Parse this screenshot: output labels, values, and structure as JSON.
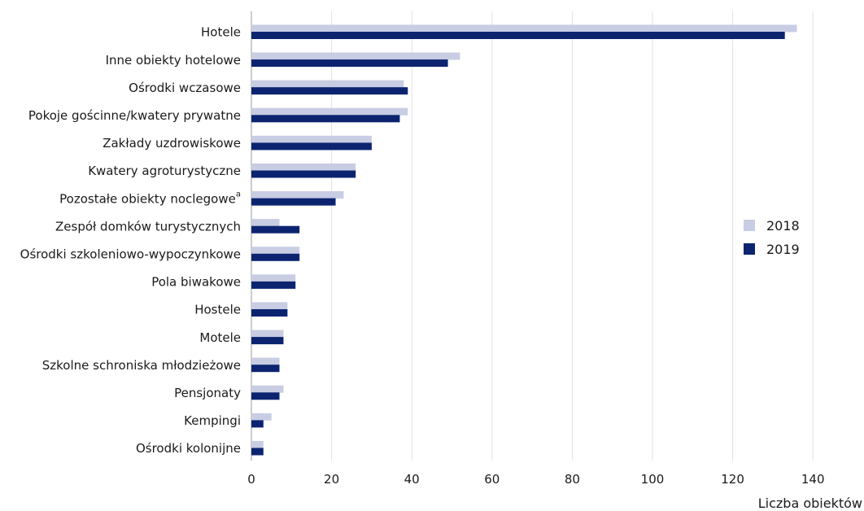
{
  "chart_data": {
    "type": "bar",
    "orientation": "horizontal",
    "categories": [
      "Hotele",
      "Inne obiekty hotelowe",
      "Ośrodki wczasowe",
      "Pokoje gościnne/kwatery prywatne",
      "Zakłady uzdrowiskowe",
      "Kwatery agroturystyczne",
      "Pozostałe obiekty noclegowe",
      "Zespół domków turystycznych",
      "Ośrodki szkoleniowo-wypoczynkowe",
      "Pola biwakowe",
      "Hostele",
      "Motele",
      "Szkolne schroniska młodzieżowe",
      "Pensjonaty",
      "Kempingi",
      "Ośrodki kolonijne"
    ],
    "footnote_marker": "a",
    "series": [
      {
        "name": "2018",
        "color": "#c8cde3",
        "values": [
          136,
          52,
          38,
          39,
          30,
          26,
          23,
          7,
          12,
          11,
          9,
          8,
          7,
          8,
          5,
          3
        ]
      },
      {
        "name": "2019",
        "color": "#0c2470",
        "values": [
          133,
          49,
          39,
          37,
          30,
          26,
          21,
          12,
          12,
          11,
          9,
          8,
          7,
          7,
          3,
          3
        ]
      }
    ],
    "xticks": [
      "0",
      "20",
      "40",
      "60",
      "80",
      "100",
      "120",
      "140"
    ],
    "xlim": [
      0,
      140
    ],
    "xlabel": "Liczba obiektów",
    "grid": "vertical",
    "legend_position": "right"
  }
}
